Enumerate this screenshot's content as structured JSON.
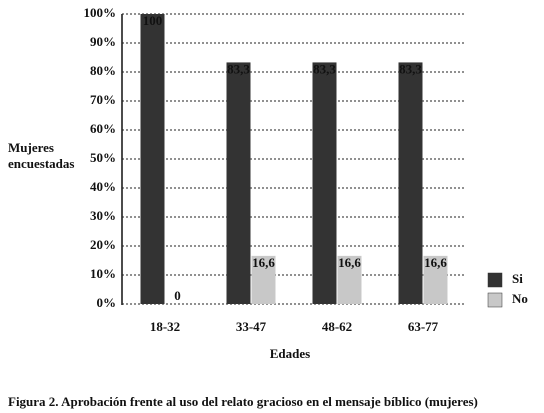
{
  "chart_data": {
    "type": "bar",
    "y_label": "Mujeres encuestadas",
    "x_label": "Edades",
    "caption": "Figura 2. Aprobación frente al uso del relato gracioso en el mensaje bíblico (mujeres)",
    "categories": [
      "18-32",
      "33-47",
      "48-62",
      "63-77"
    ],
    "series": [
      {
        "name": "Si",
        "color": "#333333",
        "values": [
          100,
          83.3,
          83.3,
          83.3
        ],
        "value_labels": [
          "100",
          "83,3",
          "83,3",
          "83,3"
        ]
      },
      {
        "name": "No",
        "color": "#c8c8c8",
        "values": [
          0,
          16.6,
          16.6,
          16.6
        ],
        "value_labels": [
          "0",
          "16,6",
          "16,6",
          "16,6"
        ]
      }
    ],
    "ylim": [
      0,
      100
    ],
    "yticks": [
      {
        "value": 0,
        "label": "0%"
      },
      {
        "value": 10,
        "label": "10%"
      },
      {
        "value": 20,
        "label": "20%"
      },
      {
        "value": 30,
        "label": "30%"
      },
      {
        "value": 40,
        "label": "40%"
      },
      {
        "value": 50,
        "label": "50%"
      },
      {
        "value": 60,
        "label": "60%"
      },
      {
        "value": 70,
        "label": "70%"
      },
      {
        "value": 80,
        "label": "80%"
      },
      {
        "value": 90,
        "label": "90%"
      },
      {
        "value": 100,
        "label": "100%"
      }
    ],
    "grid": true,
    "legend": "right"
  }
}
